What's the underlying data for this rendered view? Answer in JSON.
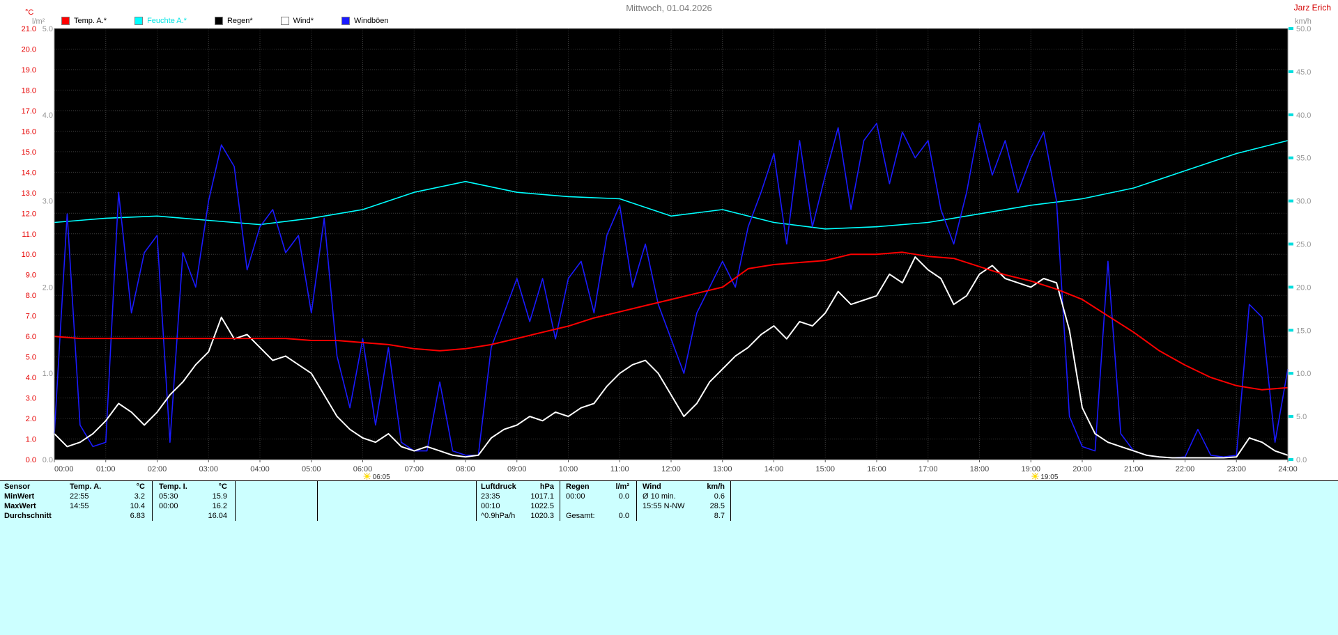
{
  "header": {
    "title": "Mittwoch, 01.04.2026",
    "user": "Jarz Erich"
  },
  "legend": [
    {
      "label": "Temp. A.*",
      "color": "#ff0000",
      "text_color": "#000000"
    },
    {
      "label": "Feuchte A.*",
      "color": "#00ffff",
      "text_color": "#00e5e5"
    },
    {
      "label": "Regen*",
      "color": "#000000",
      "text_color": "#000000"
    },
    {
      "label": "Wind*",
      "color": "#ffffff",
      "text_color": "#000000"
    },
    {
      "label": "Windböen",
      "color": "#1a1aff",
      "text_color": "#000000"
    }
  ],
  "axes": {
    "left_temp": {
      "unit": "°C",
      "min": 0,
      "max": 21,
      "step": 1,
      "color": "#e60000"
    },
    "left_rain": {
      "unit": "l/m²",
      "min": 0,
      "max": 5,
      "step": 1,
      "color": "#949494"
    },
    "right_wind": {
      "unit": "km/h",
      "min": 0,
      "max": 50,
      "step": 5,
      "color": "#949494",
      "tick_color": "#00dddd"
    },
    "x_labels": [
      "00:00",
      "01:00",
      "02:00",
      "03:00",
      "04:00",
      "05:00",
      "06:00",
      "07:00",
      "08:00",
      "09:00",
      "10:00",
      "11:00",
      "12:00",
      "13:00",
      "14:00",
      "15:00",
      "16:00",
      "17:00",
      "18:00",
      "19:00",
      "20:00",
      "21:00",
      "22:00",
      "23:00",
      "24:00"
    ]
  },
  "sun": {
    "sunrise": "06:05",
    "sunrise_hour": 6.083,
    "sunset": "19:05",
    "sunset_hour": 19.083
  },
  "chart_data": {
    "type": "line",
    "title": "Mittwoch, 01.04.2026",
    "x_unit": "hours",
    "x_range": [
      0,
      24
    ],
    "grid": true,
    "plot_background": "#000000",
    "axis_ranges": {
      "temp": [
        0,
        21
      ],
      "rain": [
        0,
        5
      ],
      "wind": [
        0,
        50
      ],
      "humidity": [
        0,
        100
      ]
    },
    "series": [
      {
        "name": "Feuchte A.",
        "unit": "%",
        "color": "#00ffff",
        "axis": "humidity",
        "x_step_h": 1,
        "values": [
          55,
          56,
          56.5,
          55.5,
          54.5,
          56,
          58,
          62,
          64.5,
          62,
          61,
          60.5,
          56.5,
          58,
          55,
          53.5,
          54,
          55,
          57,
          59,
          60.5,
          63,
          67,
          71,
          74
        ]
      },
      {
        "name": "Regen",
        "unit": "l/m²",
        "color": "#000000",
        "axis": "rain",
        "x_step_h": 1,
        "values": [
          0,
          0,
          0,
          0,
          0,
          0,
          0,
          0,
          0,
          0,
          0,
          0,
          0,
          0,
          0,
          0,
          0,
          0,
          0,
          0,
          0,
          0,
          0,
          0,
          0
        ]
      },
      {
        "name": "Windböen",
        "unit": "km/h",
        "color": "#1a1aff",
        "axis": "wind",
        "x_step_h": 0.25,
        "values": [
          3,
          28.5,
          4,
          1.5,
          2,
          31,
          17,
          24,
          26,
          2,
          24,
          20,
          30,
          36.5,
          34,
          22,
          27,
          29,
          24,
          26,
          17,
          28,
          12,
          6,
          14,
          4,
          13,
          2,
          1,
          1,
          9,
          1,
          0.5,
          0.5,
          13,
          17,
          21,
          16,
          21,
          14,
          21,
          23,
          17,
          26,
          29.5,
          20,
          25,
          18,
          14,
          10,
          17,
          20,
          23,
          20,
          27,
          31,
          35.5,
          25,
          37,
          27,
          33,
          38.5,
          29,
          37,
          39,
          32,
          38,
          35,
          37,
          29,
          25,
          31,
          39,
          33,
          37,
          31,
          35,
          38,
          30,
          5,
          1.5,
          1,
          23,
          3,
          1,
          0.5,
          0.3,
          0.2,
          0.3,
          3.5,
          0.5,
          0.3,
          0.5,
          18,
          16.5,
          2,
          10.5
        ]
      },
      {
        "name": "Wind",
        "unit": "km/h",
        "color": "#ffffff",
        "axis": "wind",
        "x_step_h": 0.25,
        "values": [
          3,
          1.5,
          2,
          3,
          4.5,
          6.5,
          5.5,
          4,
          5.5,
          7.5,
          9,
          11,
          12.5,
          16.5,
          14,
          14.5,
          13,
          11.5,
          12,
          11,
          10,
          7.5,
          5,
          3.5,
          2.5,
          2,
          3,
          1.5,
          1,
          1.5,
          1,
          0.5,
          0.3,
          0.5,
          2.5,
          3.5,
          4,
          5,
          4.5,
          5.5,
          5,
          6,
          6.5,
          8.5,
          10,
          11,
          11.5,
          10,
          7.5,
          5,
          6.5,
          9,
          10.5,
          12,
          13,
          14.5,
          15.5,
          14,
          16,
          15.5,
          17,
          19.5,
          18,
          18.5,
          19,
          21.5,
          20.5,
          23.5,
          22,
          21,
          18,
          19,
          21.5,
          22.5,
          21,
          20.5,
          20,
          21,
          20.5,
          15,
          6,
          3,
          2,
          1.5,
          1,
          0.5,
          0.3,
          0.2,
          0.2,
          0.2,
          0.2,
          0.2,
          0.3,
          2.5,
          2,
          1,
          0.5
        ]
      },
      {
        "name": "Temp. A.",
        "unit": "°C",
        "color": "#ff0000",
        "axis": "temp",
        "x_step_h": 0.5,
        "values": [
          6.0,
          5.9,
          5.9,
          5.9,
          5.9,
          5.9,
          5.9,
          5.9,
          5.9,
          5.9,
          5.8,
          5.8,
          5.7,
          5.6,
          5.4,
          5.3,
          5.4,
          5.6,
          5.9,
          6.2,
          6.5,
          6.9,
          7.2,
          7.5,
          7.8,
          8.1,
          8.4,
          9.3,
          9.5,
          9.6,
          9.7,
          10.0,
          10.0,
          10.1,
          9.9,
          9.8,
          9.4,
          9.0,
          8.7,
          8.3,
          7.8,
          7.0,
          6.2,
          5.3,
          4.6,
          4.0,
          3.6,
          3.4,
          3.5
        ]
      }
    ]
  },
  "stats": {
    "row_labels": [
      "Sensor",
      "MinWert",
      "MaxWert",
      "Durchschnitt"
    ],
    "groups": [
      {
        "name": "Temp. A.",
        "unit": "°C",
        "min_time": "22:55",
        "min_val": "3.2",
        "max_time": "14:55",
        "max_val": "10.4",
        "avg_label": "",
        "avg": "6.83"
      },
      {
        "name": "Temp. I.",
        "unit": "°C",
        "min_time": "05:30",
        "min_val": "15.9",
        "max_time": "00:00",
        "max_val": "16.2",
        "avg_label": "",
        "avg": "16.04"
      },
      {
        "name": "Luftdruck",
        "unit": "hPa",
        "min_time": "23:35",
        "min_val": "1017.1",
        "max_time": "00:10",
        "max_val": "1022.5",
        "avg_label": "^0.9hPa/h",
        "avg": "1020.3"
      },
      {
        "name": "Regen",
        "unit": "l/m²",
        "min_time": "00:00",
        "min_val": "0.0",
        "max_time": "",
        "max_val": "",
        "avg_label": "Gesamt:",
        "avg": "0.0"
      },
      {
        "name": "Wind",
        "unit": "km/h",
        "min_time": "Ø 10 min.",
        "min_val": "0.6",
        "max_time": "15:55 N-NW",
        "max_val": "28.5",
        "avg_label": "",
        "avg": "8.7"
      }
    ]
  }
}
